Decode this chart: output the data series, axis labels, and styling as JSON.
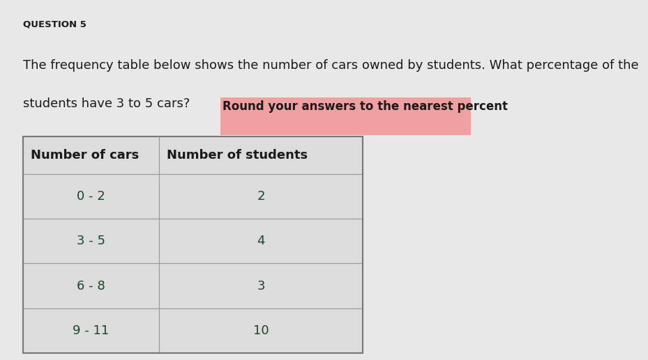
{
  "question_label": "QUESTION 5",
  "question_text_1": "The frequency table below shows the number of cars owned by students. What percentage of the",
  "question_text_2": "students have 3 to 5 cars?",
  "highlight_text": "Round your answers to the nearest percent",
  "col1_header": "Number of cars",
  "col2_header": "Number of students",
  "rows": [
    {
      "cars": "0 - 2",
      "students": "2"
    },
    {
      "cars": "3 - 5",
      "students": "4"
    },
    {
      "cars": "6 - 8",
      "students": "3"
    },
    {
      "cars": "9 - 11",
      "students": "10"
    }
  ],
  "bg_color": "#e8e8e8",
  "table_bg_light": "#dcdcdc",
  "cell_border_color": "#999999",
  "table_outer_border": "#777777",
  "highlight_bg": "#f0a0a0",
  "highlight_text_color": "#1a1a1a",
  "text_color": "#1a1a1a",
  "table_text_color": "#1a472a",
  "question_label_color": "#1a1a1a"
}
